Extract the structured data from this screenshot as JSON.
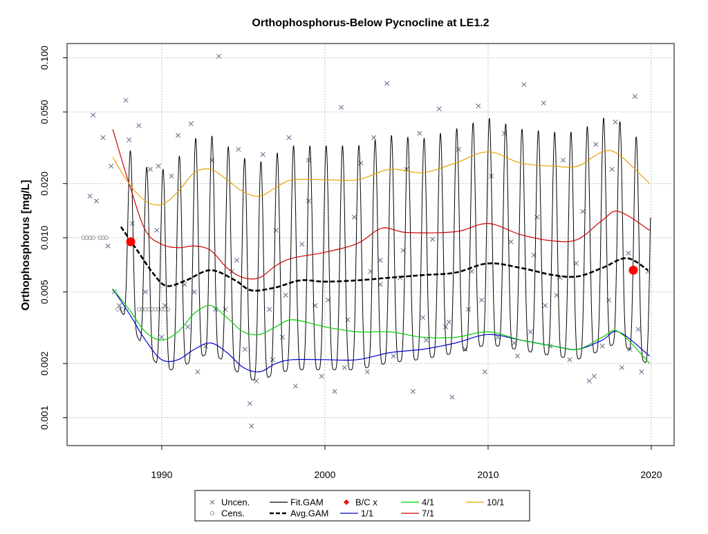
{
  "chart_data": {
    "type": "scatter",
    "title": "Orthophosphorus-Below Pycnocline at LE1.2",
    "xlabel": "",
    "ylabel": "Orthophosphorus [mg/L]",
    "xlim": [
      1984.2,
      2021.4
    ],
    "ylim": [
      0.0007,
      0.12
    ],
    "y_log": true,
    "grid": true,
    "x_ticks": [
      "1990",
      "2000",
      "2010",
      "2020"
    ],
    "y_ticks": [
      "0.001",
      "0.002",
      "0.005",
      "0.010",
      "0.020",
      "0.050",
      "0.100"
    ],
    "legend_position": "bottom-center",
    "legend": [
      {
        "label": "Uncen.",
        "key": "uncen"
      },
      {
        "label": "Cens.",
        "key": "cens"
      },
      {
        "label": "Fit.GAM",
        "key": "fit"
      },
      {
        "label": "Avg.GAM",
        "key": "avg"
      },
      {
        "label": "B/C x",
        "key": "bc"
      },
      {
        "label": "1/1",
        "key": "q1"
      },
      {
        "label": "4/1",
        "key": "q4"
      },
      {
        "label": "7/1",
        "key": "q7"
      },
      {
        "label": "10/1",
        "key": "q10"
      }
    ],
    "colors": {
      "uncen": "#5a6b8a",
      "cens": "#9a9a9a",
      "fit": "#000000",
      "avg": "#000000",
      "bc": "#ff0000",
      "q1": "#0000cc",
      "q4": "#00cc00",
      "q7": "#cc0000",
      "q10": "#e6a100",
      "grid": "#bfbfbf"
    },
    "baseline_change_points": [
      {
        "x": 1988.1,
        "y": 0.0095
      },
      {
        "x": 2018.9,
        "y": 0.0066
      }
    ],
    "avg_gam": {
      "x": [
        1987.5,
        1988.5,
        1989.5,
        1990.3,
        1991.5,
        1993.0,
        1994.5,
        1995.5,
        1997.0,
        1998.5,
        2000.0,
        2002.0,
        2004.0,
        2006.0,
        2008.0,
        2010.0,
        2012.0,
        2014.0,
        2015.5,
        2017.0,
        2018.5,
        2019.8
      ],
      "y": [
        0.0115,
        0.0085,
        0.0063,
        0.0054,
        0.0058,
        0.0066,
        0.0058,
        0.0051,
        0.0053,
        0.0058,
        0.0057,
        0.0058,
        0.006,
        0.0062,
        0.0064,
        0.0072,
        0.0068,
        0.0062,
        0.0061,
        0.0068,
        0.0077,
        0.0066
      ]
    },
    "series": [
      {
        "name": "1/1",
        "key": "q1",
        "x": [
          1987.0,
          1988.0,
          1989.0,
          1990.0,
          1991.0,
          1992.0,
          1993.0,
          1994.0,
          1995.0,
          1996.0,
          1997.0,
          1998.0,
          2000.0,
          2002.0,
          2004.0,
          2006.0,
          2008.0,
          2010.0,
          2012.0,
          2014.0,
          2015.5,
          2017.0,
          2018.0,
          2019.9
        ],
        "y": [
          0.0052,
          0.0038,
          0.0027,
          0.0021,
          0.0021,
          0.0024,
          0.0026,
          0.0023,
          0.0019,
          0.0018,
          0.002,
          0.0021,
          0.0021,
          0.0021,
          0.0023,
          0.0024,
          0.0026,
          0.0029,
          0.0027,
          0.0025,
          0.0024,
          0.0027,
          0.003,
          0.0022
        ]
      },
      {
        "name": "4/1",
        "key": "q4",
        "x": [
          1987.0,
          1988.0,
          1989.0,
          1990.0,
          1991.0,
          1992.0,
          1993.0,
          1994.0,
          1995.0,
          1996.0,
          1997.0,
          1998.0,
          2000.0,
          2002.0,
          2004.0,
          2006.0,
          2008.0,
          2010.0,
          2012.0,
          2014.0,
          2015.5,
          2017.0,
          2018.0,
          2019.9
        ],
        "y": [
          0.0052,
          0.004,
          0.003,
          0.0027,
          0.003,
          0.0038,
          0.0042,
          0.0036,
          0.003,
          0.0029,
          0.0032,
          0.0035,
          0.0032,
          0.003,
          0.003,
          0.0028,
          0.0028,
          0.003,
          0.0027,
          0.0025,
          0.0024,
          0.0028,
          0.003,
          0.002
        ]
      },
      {
        "name": "7/1",
        "key": "q7",
        "x": [
          1987.0,
          1988.0,
          1989.0,
          1990.0,
          1991.0,
          1992.0,
          1993.0,
          1994.0,
          1995.0,
          1996.0,
          1997.0,
          1998.0,
          2000.0,
          2002.0,
          2003.5,
          2005.0,
          2008.0,
          2010.0,
          2012.0,
          2014.0,
          2015.5,
          2017.0,
          2018.0,
          2019.9
        ],
        "y": [
          0.04,
          0.02,
          0.011,
          0.0092,
          0.0088,
          0.009,
          0.0085,
          0.0068,
          0.006,
          0.006,
          0.007,
          0.0077,
          0.0083,
          0.0093,
          0.0113,
          0.0107,
          0.0108,
          0.012,
          0.0104,
          0.0096,
          0.0098,
          0.0125,
          0.014,
          0.011
        ]
      },
      {
        "name": "10/1",
        "key": "q10",
        "x": [
          1987.0,
          1988.0,
          1989.0,
          1990.0,
          1991.0,
          1992.0,
          1993.0,
          1994.0,
          1995.0,
          1996.0,
          1997.0,
          1998.0,
          2000.0,
          2002.0,
          2004.0,
          2006.0,
          2008.0,
          2010.0,
          2012.0,
          2014.0,
          2015.5,
          2017.0,
          2018.0,
          2019.9
        ],
        "y": [
          0.028,
          0.02,
          0.016,
          0.0153,
          0.018,
          0.023,
          0.024,
          0.021,
          0.018,
          0.017,
          0.019,
          0.021,
          0.021,
          0.021,
          0.024,
          0.023,
          0.026,
          0.03,
          0.026,
          0.025,
          0.025,
          0.03,
          0.029,
          0.02
        ]
      }
    ],
    "uncensored_points": {
      "x": [
        1985.6,
        1985.8,
        1986.0,
        1986.4,
        1986.7,
        1986.9,
        1987.1,
        1987.4,
        1987.8,
        1988.0,
        1988.2,
        1988.6,
        1989.0,
        1989.3,
        1989.7,
        1990.2,
        1990.6,
        1991.0,
        1991.4,
        1991.8,
        1992.2,
        1992.7,
        1993.1,
        1993.5,
        1993.9,
        1994.3,
        1994.7,
        1995.1,
        1995.4,
        1995.8,
        1996.2,
        1996.6,
        1997.0,
        1997.4,
        1997.8,
        1998.2,
        1998.6,
        1999.0,
        1999.4,
        1999.8,
        2000.2,
        2000.6,
        2001.0,
        2001.4,
        2001.8,
        2002.2,
        2002.6,
        2003.0,
        2003.4,
        2003.8,
        2004.2,
        2004.6,
        2005.0,
        2005.4,
        2005.8,
        2006.2,
        2006.6,
        2007.0,
        2007.4,
        2007.8,
        2008.2,
        2008.6,
        2009.0,
        2009.4,
        2009.8,
        2010.2,
        2010.6,
        2011.0,
        2011.4,
        2011.8,
        2012.2,
        2012.6,
        2013.0,
        2013.4,
        2013.8,
        2014.2,
        2014.6,
        2015.0,
        2015.4,
        2015.8,
        2016.2,
        2016.6,
        2017.0,
        2017.4,
        2017.8,
        2018.2,
        2018.6,
        2019.0,
        2019.4,
        2019.8,
        1988.0,
        1990.0,
        1992.0,
        1993.3,
        1995.5,
        1996.8,
        2001.2,
        2003.4,
        2006.0,
        2008.8,
        2011.6,
        2013.5,
        2016.5,
        2018.7,
        1989.8,
        1994.6,
        1999.0,
        2004.8,
        2009.6,
        2014.4,
        2017.6,
        1991.6,
        1997.6,
        2002.8,
        2007.6,
        2012.8,
        2019.2
      ],
      "y": [
        0.017,
        0.048,
        0.016,
        0.036,
        0.009,
        0.025,
        0.005,
        0.0042,
        0.058,
        0.035,
        0.012,
        0.042,
        0.005,
        0.024,
        0.011,
        0.0042,
        0.022,
        0.037,
        0.0055,
        0.043,
        0.0018,
        0.0025,
        0.027,
        0.102,
        0.004,
        0.0065,
        0.031,
        0.0024,
        0.0012,
        0.0016,
        0.029,
        0.004,
        0.011,
        0.0028,
        0.036,
        0.0015,
        0.0092,
        0.027,
        0.0042,
        0.0017,
        0.0045,
        0.0014,
        0.053,
        0.0035,
        0.013,
        0.026,
        0.0018,
        0.036,
        0.0075,
        0.072,
        0.0022,
        0.006,
        0.024,
        0.0014,
        0.038,
        0.0027,
        0.0098,
        0.052,
        0.0032,
        0.0013,
        0.031,
        0.0024,
        0.0065,
        0.054,
        0.0018,
        0.022,
        0.0028,
        0.038,
        0.0095,
        0.0022,
        0.071,
        0.003,
        0.013,
        0.056,
        0.0025,
        0.0048,
        0.027,
        0.0021,
        0.0072,
        0.014,
        0.0016,
        0.033,
        0.0025,
        0.0045,
        0.044,
        0.0019,
        0.0082,
        0.061,
        0.0018,
        0.0065,
        0.0095,
        0.0028,
        0.005,
        0.004,
        0.0009,
        0.0021,
        0.0019,
        0.0055,
        0.0036,
        0.004,
        0.0026,
        0.0042,
        0.0017,
        0.0024,
        0.025,
        0.0075,
        0.016,
        0.0085,
        0.0045,
        0.006,
        0.024,
        0.0032,
        0.0048,
        0.0065,
        0.0034,
        0.008,
        0.0031
      ]
    },
    "censored_points": {
      "x": [
        1985.2,
        1985.4,
        1985.6,
        1985.8,
        1986.2,
        1986.4,
        1986.6,
        1987.3,
        1987.6,
        1988.6,
        1988.8,
        1989.0,
        1989.2,
        1989.4,
        1989.6,
        1989.8,
        1990.0,
        1990.2,
        1990.4
      ],
      "y": [
        0.01,
        0.01,
        0.01,
        0.01,
        0.01,
        0.01,
        0.01,
        0.004,
        0.004,
        0.004,
        0.004,
        0.004,
        0.004,
        0.004,
        0.004,
        0.004,
        0.004,
        0.004,
        0.004
      ]
    }
  }
}
